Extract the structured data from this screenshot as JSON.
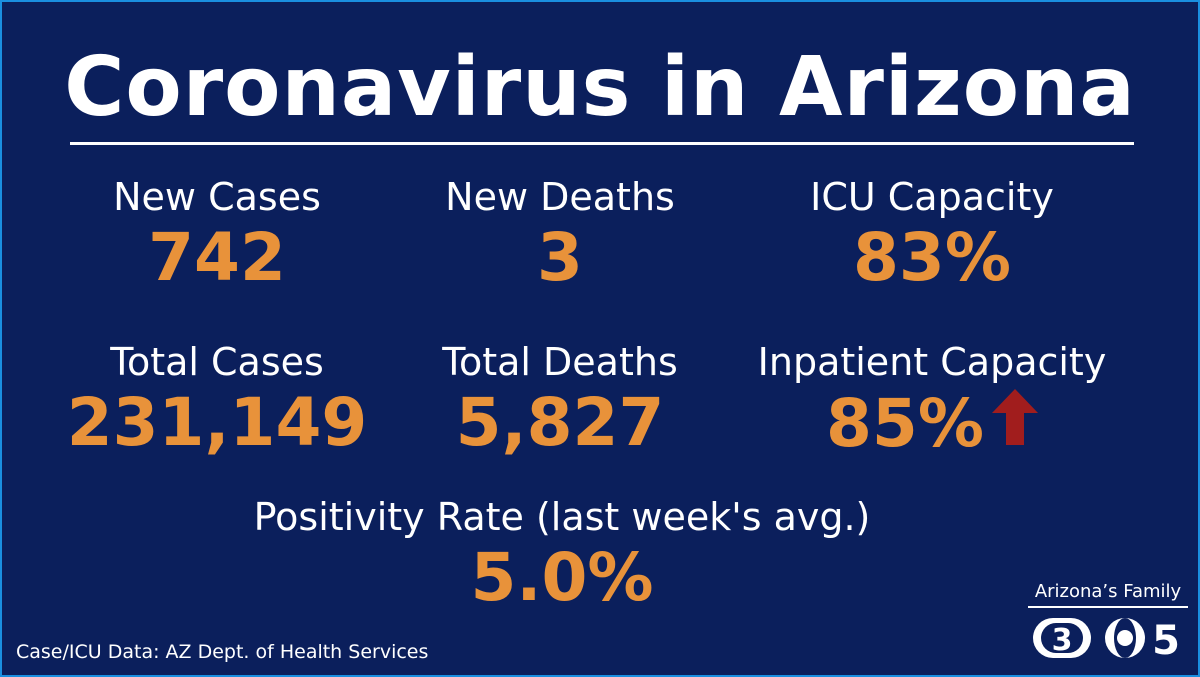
{
  "title": "Coronavirus in Arizona",
  "stats": {
    "new_cases": {
      "label": "New Cases",
      "value": "742"
    },
    "new_deaths": {
      "label": "New Deaths",
      "value": "3"
    },
    "icu_capacity": {
      "label": "ICU Capacity",
      "value": "83%"
    },
    "total_cases": {
      "label": "Total Cases",
      "value": "231,149"
    },
    "total_deaths": {
      "label": "Total Deaths",
      "value": "5,827"
    },
    "inpatient_capacity": {
      "label": "Inpatient Capacity",
      "value": "85%",
      "trend_icon": "up-arrow-icon"
    },
    "positivity_rate": {
      "label": "Positivity Rate (last week's avg.)",
      "value": "5.0%"
    }
  },
  "source": "Case/ICU  Data: AZ Dept. of Health Services",
  "brand": {
    "name": "Arizona’s Family",
    "channel_left": "3",
    "channel_right": "5"
  },
  "colors": {
    "background": "#0b1f5c",
    "value": "#e8923a",
    "text": "#ffffff",
    "arrow": "#a11d1d"
  }
}
